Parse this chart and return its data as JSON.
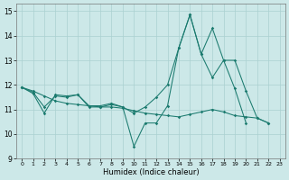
{
  "xlabel": "Humidex (Indice chaleur)",
  "xlim": [
    -0.5,
    23.5
  ],
  "ylim": [
    9,
    15.3
  ],
  "xticks": [
    0,
    1,
    2,
    3,
    4,
    5,
    6,
    7,
    8,
    9,
    10,
    11,
    12,
    13,
    14,
    15,
    16,
    17,
    18,
    19,
    20,
    21,
    22,
    23
  ],
  "yticks": [
    9,
    10,
    11,
    12,
    13,
    14,
    15
  ],
  "color": "#1a7a6e",
  "background": "#cce8e8",
  "grid_color": "#aad0d0",
  "s1_x": [
    0,
    1,
    2,
    3,
    4,
    5,
    6,
    7,
    8,
    9,
    10,
    11,
    12,
    13,
    14,
    15,
    16,
    17,
    18,
    19,
    20
  ],
  "s1_y": [
    11.9,
    11.65,
    10.85,
    11.6,
    11.55,
    11.6,
    11.1,
    11.1,
    11.2,
    11.1,
    9.5,
    10.45,
    10.45,
    11.15,
    13.5,
    14.85,
    13.25,
    12.3,
    13.0,
    11.85,
    10.45
  ],
  "s2_x": [
    0,
    1,
    2,
    3,
    4,
    5,
    6,
    7,
    8,
    9,
    10,
    11,
    12,
    13,
    14,
    15,
    16,
    17,
    18,
    19,
    20,
    21,
    22
  ],
  "s2_y": [
    11.9,
    11.7,
    11.1,
    11.55,
    11.5,
    11.6,
    11.15,
    11.15,
    11.25,
    11.1,
    10.85,
    11.1,
    11.5,
    12.0,
    13.5,
    14.85,
    13.25,
    14.3,
    13.0,
    13.0,
    11.75,
    10.65,
    10.45
  ],
  "s3_x": [
    0,
    1,
    2,
    3,
    4,
    5,
    6,
    7,
    8,
    9,
    10,
    11,
    12,
    13,
    14,
    15,
    16,
    17,
    18,
    19,
    20,
    21,
    22
  ],
  "s3_y": [
    11.9,
    11.75,
    11.55,
    11.35,
    11.25,
    11.2,
    11.15,
    11.1,
    11.1,
    11.05,
    10.95,
    10.85,
    10.8,
    10.75,
    10.7,
    10.8,
    10.9,
    11.0,
    10.9,
    10.75,
    10.7,
    10.65,
    10.45
  ]
}
